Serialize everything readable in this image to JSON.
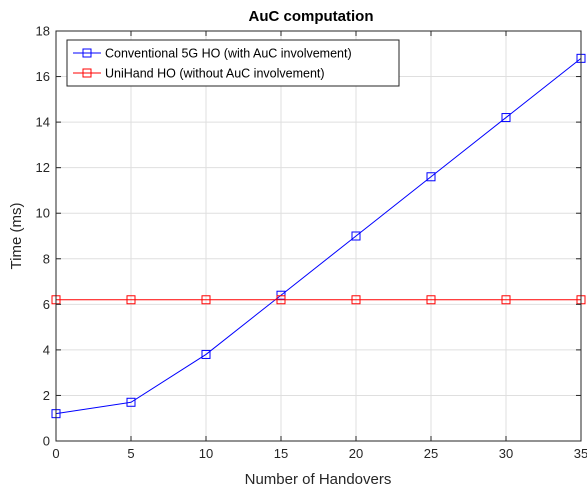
{
  "chart_data": {
    "type": "line",
    "title": "AuC computation",
    "xlabel": "Number of Handovers",
    "ylabel": "Time (ms)",
    "xlim": [
      0,
      35
    ],
    "ylim": [
      0,
      18
    ],
    "xticks": [
      0,
      5,
      10,
      15,
      20,
      25,
      30,
      35
    ],
    "yticks": [
      0,
      2,
      4,
      6,
      8,
      10,
      12,
      14,
      16,
      18
    ],
    "grid": true,
    "legend_position": "top-left",
    "x": [
      0,
      5,
      10,
      15,
      20,
      25,
      30,
      35
    ],
    "series": [
      {
        "name": "Conventional 5G HO (with AuC involvement)",
        "color": "#0000ff",
        "marker": "square",
        "values": [
          1.2,
          1.7,
          3.8,
          6.4,
          9.0,
          11.6,
          14.2,
          16.8
        ]
      },
      {
        "name": "UniHand HO (without AuC involvement)",
        "color": "#ff0000",
        "marker": "square",
        "values": [
          6.2,
          6.2,
          6.2,
          6.2,
          6.2,
          6.2,
          6.2,
          6.2
        ]
      }
    ]
  }
}
